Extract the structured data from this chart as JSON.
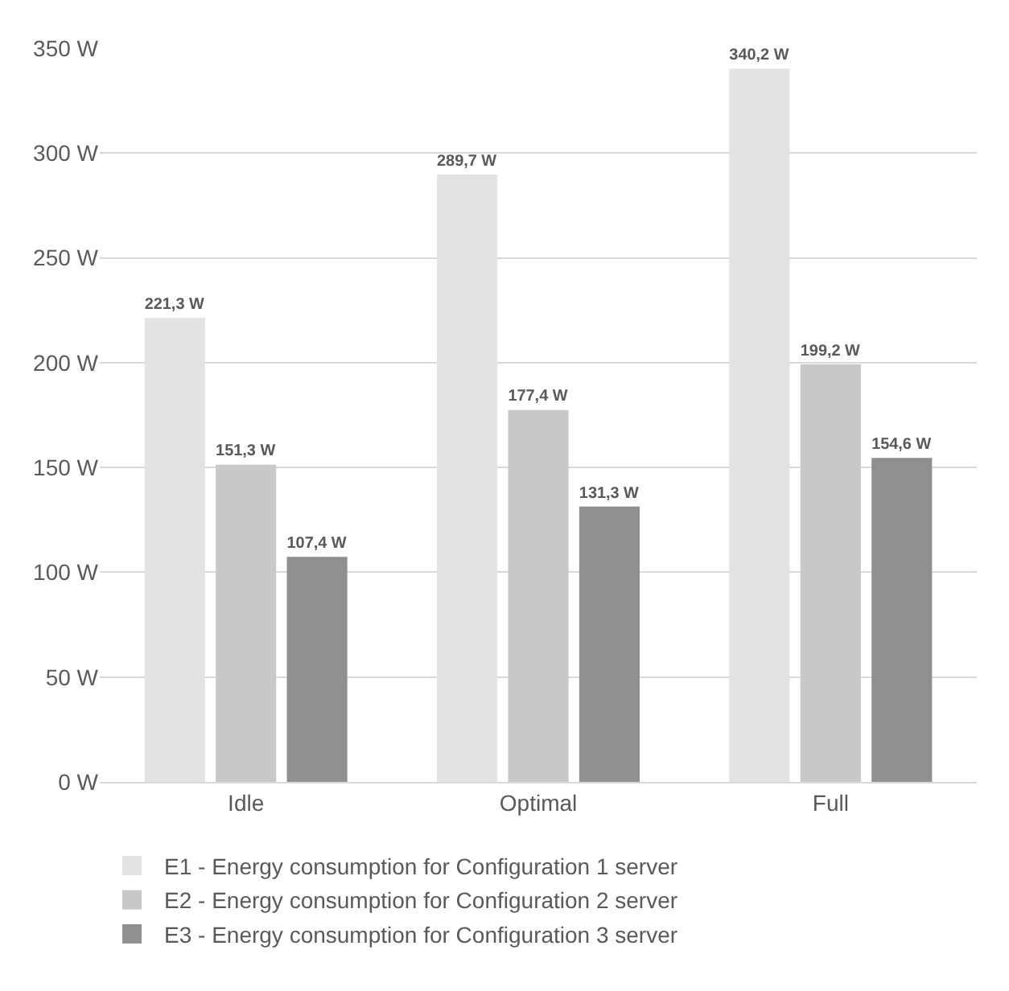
{
  "chart_data": {
    "type": "bar",
    "categories": [
      "Idle",
      "Optimal",
      "Full"
    ],
    "series": [
      {
        "name": "E1 - Energy consumption for Configuration 1 server",
        "color": "#e3e3e3",
        "values": [
          221.3,
          289.7,
          340.2
        ],
        "value_labels": [
          "221,3 W",
          "289,7 W",
          "340,2 W"
        ]
      },
      {
        "name": "E2 - Energy consumption for Configuration 2 server",
        "color": "#c8c8c8",
        "values": [
          151.3,
          177.4,
          199.2
        ],
        "value_labels": [
          "151,3 W",
          "177,4 W",
          "199,2 W"
        ]
      },
      {
        "name": "E3 - Energy consumption for Configuration 3 server",
        "color": "#8f8f8f",
        "values": [
          107.4,
          131.3,
          154.6
        ],
        "value_labels": [
          "107,4 W",
          "131,3 W",
          "154,6 W"
        ]
      }
    ],
    "ylim": [
      0,
      350
    ],
    "yticks": [
      {
        "value": 0,
        "label": "0 W"
      },
      {
        "value": 50,
        "label": "50 W"
      },
      {
        "value": 100,
        "label": "100 W"
      },
      {
        "value": 150,
        "label": "150 W"
      },
      {
        "value": 200,
        "label": "200 W"
      },
      {
        "value": 250,
        "label": "250 W"
      },
      {
        "value": 300,
        "label": "300 W"
      },
      {
        "value": 350,
        "label": "350 W"
      }
    ],
    "grid": "y",
    "legend": "bottom"
  }
}
